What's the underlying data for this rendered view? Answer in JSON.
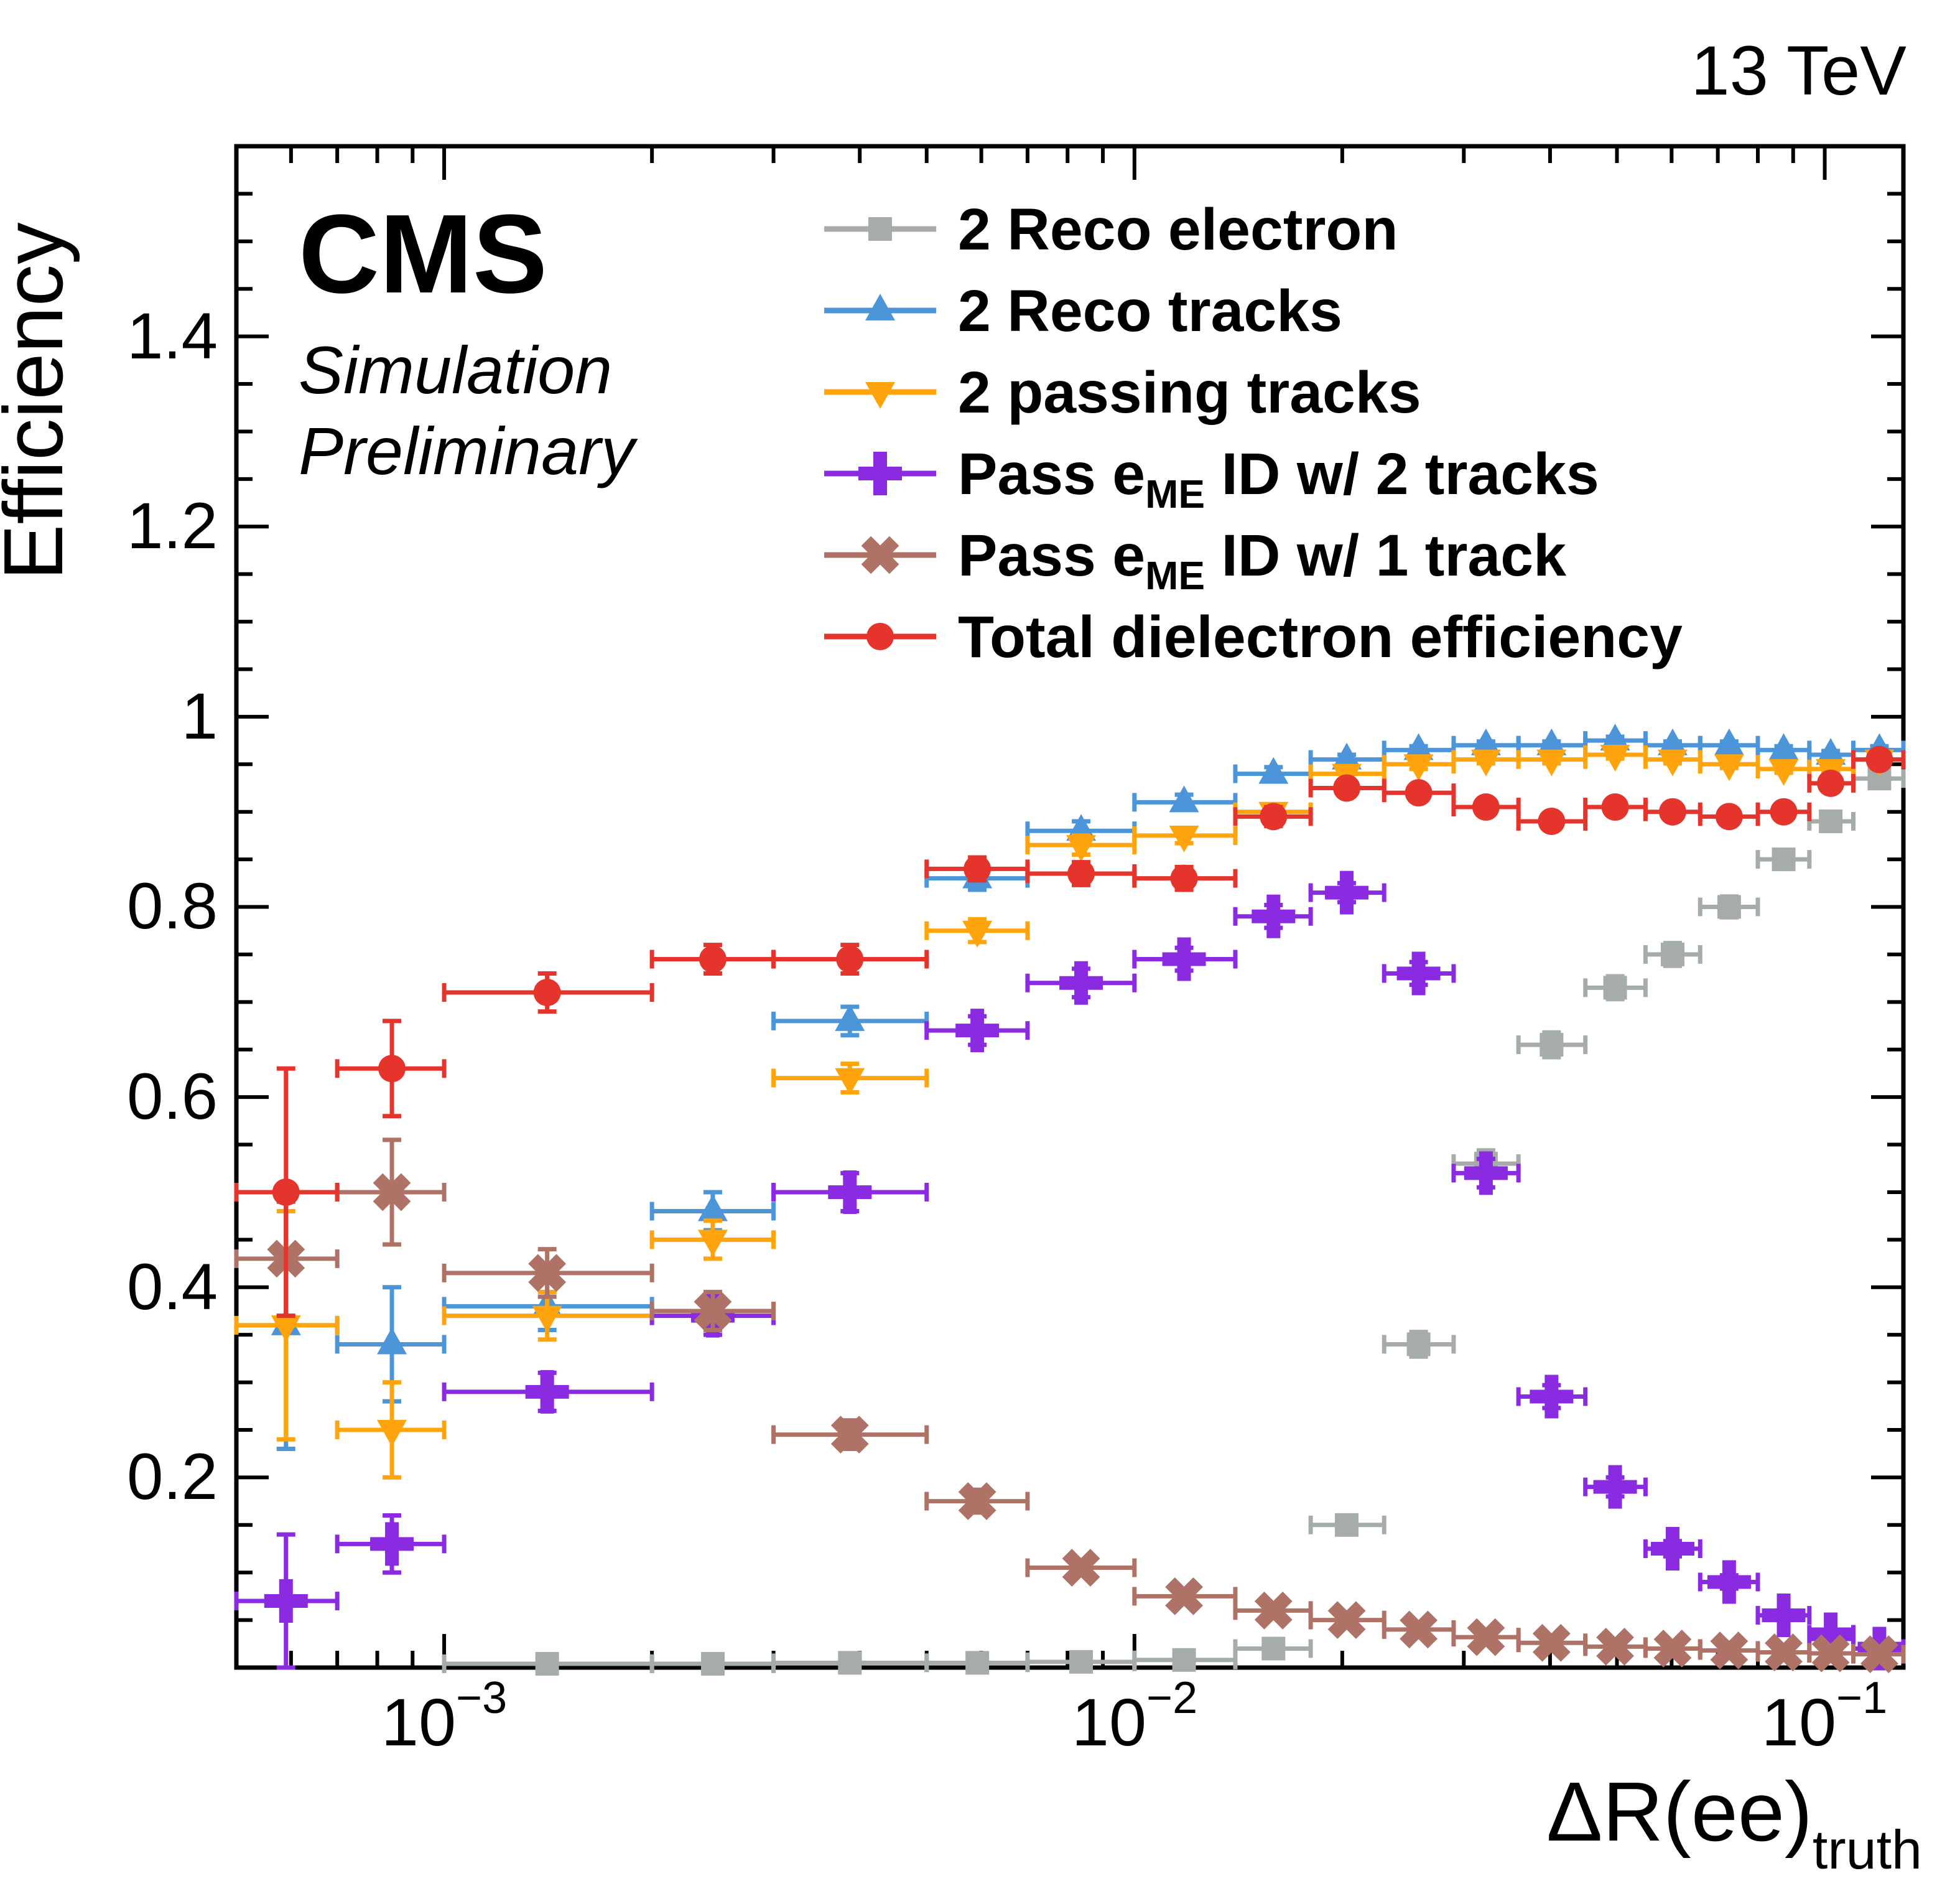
{
  "header": {
    "energy_label": "13 TeV"
  },
  "plot_labels": {
    "experiment": "CMS",
    "sim_line1": "Simulation",
    "sim_line2": "Preliminary",
    "y_axis": "Efficiency",
    "x_axis_main": "ΔR(ee)",
    "x_axis_sub": "truth"
  },
  "chart_data": {
    "type": "scatter",
    "x_scale": "log",
    "xlim": [
      0.0005,
      0.13
    ],
    "ylim": [
      0,
      1.6
    ],
    "grid": false,
    "legend_position": "top-center-inside",
    "x_axis_label": "ΔR(ee)_truth",
    "y_axis_label": "Efficiency",
    "y_ticks": [
      0.2,
      0.4,
      0.6,
      0.8,
      1.0,
      1.2,
      1.4
    ],
    "y_tick_labels": [
      "0.2",
      "0.4",
      "0.6",
      "0.8",
      "1",
      "1.2",
      "1.4"
    ],
    "x_tick_labels": [
      {
        "base": "10",
        "exp": "−3",
        "value": 0.001
      },
      {
        "base": "10",
        "exp": "−2",
        "value": 0.01
      },
      {
        "base": "10",
        "exp": "−1",
        "value": 0.1
      }
    ],
    "point_format": [
      "x",
      "x_low",
      "x_high",
      "y",
      "y_err"
    ],
    "series": [
      {
        "name": "2 Reco electron",
        "label_pre": "2 Reco electron",
        "label_sub": "",
        "label_post": "",
        "marker": "square",
        "color": "#A6ADA8",
        "points": [
          [
            0.00141,
            0.001,
            0.002,
            0.004,
            0.002
          ],
          [
            0.00245,
            0.002,
            0.003,
            0.004,
            0.002
          ],
          [
            0.00387,
            0.003,
            0.005,
            0.005,
            0.002
          ],
          [
            0.00592,
            0.005,
            0.007,
            0.005,
            0.002
          ],
          [
            0.00837,
            0.007,
            0.01,
            0.006,
            0.002
          ],
          [
            0.0118,
            0.01,
            0.014,
            0.008,
            0.002
          ],
          [
            0.0159,
            0.014,
            0.018,
            0.02,
            0.004
          ],
          [
            0.0203,
            0.018,
            0.023,
            0.15,
            0.01
          ],
          [
            0.0258,
            0.023,
            0.029,
            0.34,
            0.013
          ],
          [
            0.0323,
            0.029,
            0.036,
            0.53,
            0.014
          ],
          [
            0.0402,
            0.036,
            0.045,
            0.655,
            0.013
          ],
          [
            0.0497,
            0.045,
            0.055,
            0.715,
            0.012
          ],
          [
            0.0602,
            0.055,
            0.066,
            0.75,
            0.012
          ],
          [
            0.0727,
            0.066,
            0.08,
            0.8,
            0.011
          ],
          [
            0.0872,
            0.08,
            0.095,
            0.85,
            0.01
          ],
          [
            0.102,
            0.095,
            0.11,
            0.89,
            0.009
          ],
          [
            0.12,
            0.11,
            0.13,
            0.935,
            0.008
          ]
        ]
      },
      {
        "name": "2 Reco tracks",
        "label_pre": "2 Reco tracks",
        "label_sub": "",
        "label_post": "",
        "marker": "triangle-up",
        "color": "#4D95D9",
        "points": [
          [
            0.00059,
            0.0005,
            0.0007,
            0.36,
            0.13
          ],
          [
            0.00084,
            0.0007,
            0.001,
            0.34,
            0.06
          ],
          [
            0.00141,
            0.001,
            0.002,
            0.38,
            0.025
          ],
          [
            0.00245,
            0.002,
            0.003,
            0.48,
            0.02
          ],
          [
            0.00387,
            0.003,
            0.005,
            0.68,
            0.015
          ],
          [
            0.00592,
            0.005,
            0.007,
            0.83,
            0.012
          ],
          [
            0.00837,
            0.007,
            0.01,
            0.88,
            0.01
          ],
          [
            0.0118,
            0.01,
            0.014,
            0.91,
            0.008
          ],
          [
            0.0159,
            0.014,
            0.018,
            0.94,
            0.007
          ],
          [
            0.0203,
            0.018,
            0.023,
            0.955,
            0.005
          ],
          [
            0.0258,
            0.023,
            0.029,
            0.965,
            0.004
          ],
          [
            0.0323,
            0.029,
            0.036,
            0.97,
            0.004
          ],
          [
            0.0402,
            0.036,
            0.045,
            0.97,
            0.004
          ],
          [
            0.0497,
            0.045,
            0.055,
            0.975,
            0.004
          ],
          [
            0.0602,
            0.055,
            0.066,
            0.97,
            0.004
          ],
          [
            0.0727,
            0.066,
            0.08,
            0.97,
            0.004
          ],
          [
            0.0872,
            0.08,
            0.095,
            0.965,
            0.004
          ],
          [
            0.102,
            0.095,
            0.11,
            0.96,
            0.004
          ],
          [
            0.12,
            0.11,
            0.13,
            0.965,
            0.004
          ]
        ]
      },
      {
        "name": "2 passing tracks",
        "label_pre": "2 passing tracks",
        "label_sub": "",
        "label_post": "",
        "marker": "triangle-down",
        "color": "#FFA40D",
        "points": [
          [
            0.00059,
            0.0005,
            0.0007,
            0.36,
            0.12
          ],
          [
            0.00084,
            0.0007,
            0.001,
            0.25,
            0.05
          ],
          [
            0.00141,
            0.001,
            0.002,
            0.37,
            0.025
          ],
          [
            0.00245,
            0.002,
            0.003,
            0.45,
            0.02
          ],
          [
            0.00387,
            0.003,
            0.005,
            0.62,
            0.015
          ],
          [
            0.00592,
            0.005,
            0.007,
            0.775,
            0.012
          ],
          [
            0.00837,
            0.007,
            0.01,
            0.865,
            0.01
          ],
          [
            0.0118,
            0.01,
            0.014,
            0.875,
            0.008
          ],
          [
            0.0159,
            0.014,
            0.018,
            0.9,
            0.007
          ],
          [
            0.0203,
            0.018,
            0.023,
            0.94,
            0.006
          ],
          [
            0.0258,
            0.023,
            0.029,
            0.95,
            0.005
          ],
          [
            0.0323,
            0.029,
            0.036,
            0.955,
            0.004
          ],
          [
            0.0402,
            0.036,
            0.045,
            0.955,
            0.004
          ],
          [
            0.0497,
            0.045,
            0.055,
            0.96,
            0.004
          ],
          [
            0.0602,
            0.055,
            0.066,
            0.955,
            0.004
          ],
          [
            0.0727,
            0.066,
            0.08,
            0.95,
            0.004
          ],
          [
            0.0872,
            0.08,
            0.095,
            0.945,
            0.004
          ],
          [
            0.102,
            0.095,
            0.11,
            0.945,
            0.004
          ],
          [
            0.12,
            0.11,
            0.13,
            0.955,
            0.004
          ]
        ]
      },
      {
        "name": "Pass eME ID w/ 2 tracks",
        "label_pre": "Pass e",
        "label_sub": "ME",
        "label_post": " ID w/ 2 tracks",
        "marker": "plus",
        "color": "#8A2BE2",
        "points": [
          [
            0.00059,
            0.0005,
            0.0007,
            0.07,
            0.07
          ],
          [
            0.00084,
            0.0007,
            0.001,
            0.13,
            0.03
          ],
          [
            0.00141,
            0.001,
            0.002,
            0.29,
            0.02
          ],
          [
            0.00245,
            0.002,
            0.003,
            0.37,
            0.02
          ],
          [
            0.00387,
            0.003,
            0.005,
            0.5,
            0.02
          ],
          [
            0.00592,
            0.005,
            0.007,
            0.67,
            0.015
          ],
          [
            0.00837,
            0.007,
            0.01,
            0.72,
            0.015
          ],
          [
            0.0118,
            0.01,
            0.014,
            0.745,
            0.012
          ],
          [
            0.0159,
            0.014,
            0.018,
            0.79,
            0.012
          ],
          [
            0.0203,
            0.018,
            0.023,
            0.815,
            0.01
          ],
          [
            0.0258,
            0.023,
            0.029,
            0.73,
            0.012
          ],
          [
            0.0323,
            0.029,
            0.036,
            0.52,
            0.015
          ],
          [
            0.0402,
            0.036,
            0.045,
            0.285,
            0.012
          ],
          [
            0.0497,
            0.045,
            0.055,
            0.19,
            0.01
          ],
          [
            0.0602,
            0.055,
            0.066,
            0.125,
            0.008
          ],
          [
            0.0727,
            0.066,
            0.08,
            0.09,
            0.007
          ],
          [
            0.0872,
            0.08,
            0.095,
            0.055,
            0.005
          ],
          [
            0.102,
            0.095,
            0.11,
            0.035,
            0.004
          ],
          [
            0.12,
            0.11,
            0.13,
            0.02,
            0.003
          ]
        ]
      },
      {
        "name": "Pass eME ID w/ 1 track",
        "label_pre": "Pass e",
        "label_sub": "ME",
        "label_post": " ID w/ 1 track",
        "marker": "cross",
        "color": "#AE7266",
        "points": [
          [
            0.00059,
            0.0005,
            0.0007,
            0.43,
            0.06
          ],
          [
            0.00084,
            0.0007,
            0.001,
            0.5,
            0.055
          ],
          [
            0.00141,
            0.001,
            0.002,
            0.415,
            0.025
          ],
          [
            0.00245,
            0.002,
            0.003,
            0.375,
            0.02
          ],
          [
            0.00387,
            0.003,
            0.005,
            0.245,
            0.015
          ],
          [
            0.00592,
            0.005,
            0.007,
            0.175,
            0.012
          ],
          [
            0.00837,
            0.007,
            0.01,
            0.105,
            0.008
          ],
          [
            0.0118,
            0.01,
            0.014,
            0.075,
            0.006
          ],
          [
            0.0159,
            0.014,
            0.018,
            0.06,
            0.005
          ],
          [
            0.0203,
            0.018,
            0.023,
            0.05,
            0.005
          ],
          [
            0.0258,
            0.023,
            0.029,
            0.04,
            0.004
          ],
          [
            0.0323,
            0.029,
            0.036,
            0.032,
            0.004
          ],
          [
            0.0402,
            0.036,
            0.045,
            0.026,
            0.003
          ],
          [
            0.0497,
            0.045,
            0.055,
            0.022,
            0.003
          ],
          [
            0.0602,
            0.055,
            0.066,
            0.02,
            0.003
          ],
          [
            0.0727,
            0.066,
            0.08,
            0.018,
            0.002
          ],
          [
            0.0872,
            0.08,
            0.095,
            0.016,
            0.002
          ],
          [
            0.102,
            0.095,
            0.11,
            0.015,
            0.002
          ],
          [
            0.12,
            0.11,
            0.13,
            0.014,
            0.002
          ]
        ]
      },
      {
        "name": "Total dielectron efficiency",
        "label_pre": "Total dielectron efficiency",
        "label_sub": "",
        "label_post": "",
        "marker": "circle",
        "color": "#E4342C",
        "points": [
          [
            0.00059,
            0.0005,
            0.0007,
            0.5,
            0.13
          ],
          [
            0.00084,
            0.0007,
            0.001,
            0.63,
            0.05
          ],
          [
            0.00141,
            0.001,
            0.002,
            0.71,
            0.02
          ],
          [
            0.00245,
            0.002,
            0.003,
            0.745,
            0.015
          ],
          [
            0.00387,
            0.003,
            0.005,
            0.745,
            0.015
          ],
          [
            0.00592,
            0.005,
            0.007,
            0.84,
            0.012
          ],
          [
            0.00837,
            0.007,
            0.01,
            0.835,
            0.012
          ],
          [
            0.0118,
            0.01,
            0.014,
            0.83,
            0.012
          ],
          [
            0.0159,
            0.014,
            0.018,
            0.895,
            0.01
          ],
          [
            0.0203,
            0.018,
            0.023,
            0.925,
            0.008
          ],
          [
            0.0258,
            0.023,
            0.029,
            0.92,
            0.008
          ],
          [
            0.0323,
            0.029,
            0.036,
            0.905,
            0.008
          ],
          [
            0.0402,
            0.036,
            0.045,
            0.89,
            0.008
          ],
          [
            0.0497,
            0.045,
            0.055,
            0.905,
            0.008
          ],
          [
            0.0602,
            0.055,
            0.066,
            0.9,
            0.008
          ],
          [
            0.0727,
            0.066,
            0.08,
            0.895,
            0.008
          ],
          [
            0.0872,
            0.08,
            0.095,
            0.9,
            0.008
          ],
          [
            0.102,
            0.095,
            0.11,
            0.93,
            0.008
          ],
          [
            0.12,
            0.11,
            0.13,
            0.955,
            0.006
          ]
        ]
      }
    ]
  }
}
